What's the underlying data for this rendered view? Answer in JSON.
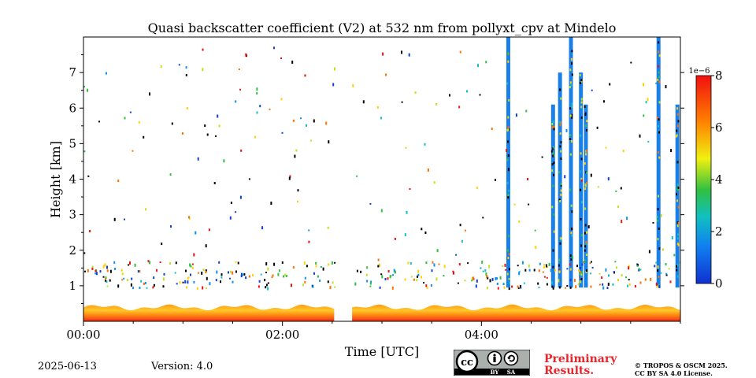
{
  "chart_data": {
    "type": "heatmap",
    "title": "Quasi backscatter coefficient (V2) at 532 nm from pollyxt_cpv at Mindelo",
    "xlabel": "Time [UTC]",
    "ylabel": "Height [km]",
    "x_range_hours": [
      0,
      6.0
    ],
    "x_ticks": [
      {
        "value": 0,
        "label": "00:00"
      },
      {
        "value": 2,
        "label": "02:00"
      },
      {
        "value": 4,
        "label": "04:00"
      }
    ],
    "ylim": [
      0,
      8
    ],
    "y_ticks": [
      1,
      2,
      3,
      4,
      5,
      6,
      7
    ],
    "y_tick_labels": [
      "1",
      "2",
      "3",
      "4",
      "5",
      "6",
      "7"
    ],
    "data_gap_hours": [
      2.52,
      2.7
    ],
    "near_surface_layer_km": [
      0,
      0.45
    ],
    "scattered_aerosol_band_km": [
      0.95,
      1.7
    ],
    "cloud_columns_hours": [
      4.27,
      4.72,
      4.79,
      4.9,
      5.0,
      5.05,
      5.78,
      5.97
    ],
    "colorbar": {
      "min": 0,
      "max": 8,
      "ticks": [
        "0",
        "2",
        "4",
        "6",
        "8"
      ],
      "exponent_label": "1e−6",
      "colormap": "jet"
    }
  },
  "footer": {
    "date": "2025-06-13",
    "version": "Version: 4.0",
    "preliminary_line1": "Preliminary",
    "preliminary_line2": "Results.",
    "copyright_line1": "© TROPOS & OSCM 2025.",
    "copyright_line2": "CC BY SA 4.0 License.",
    "license_badge": {
      "cc": "cc",
      "by": "BY",
      "sa": "SA"
    }
  },
  "colors": {
    "warning_red": "#e8262c",
    "surface_layer_deep": "#f02a1a",
    "surface_layer_light": "#ffc020"
  }
}
